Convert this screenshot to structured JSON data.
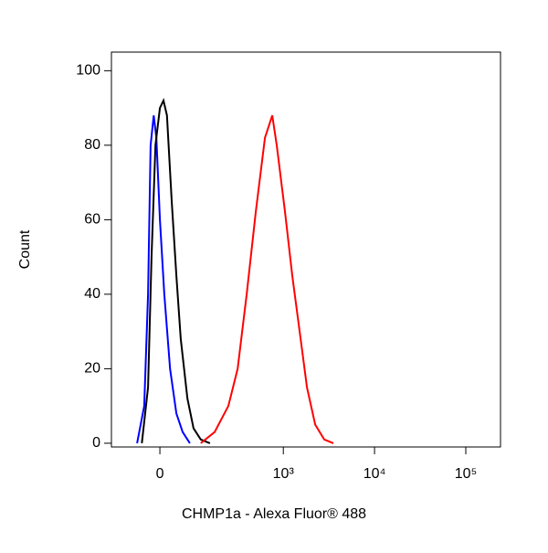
{
  "chart_data": {
    "type": "line",
    "xlabel": "CHMP1a - Alexa Fluor® 488",
    "ylabel": "Count",
    "xscale": "biexponential",
    "xlim": [
      -138,
      240000
    ],
    "ylim": [
      -1,
      105
    ],
    "xticks": [
      0,
      {
        "value": 1000,
        "label": "10³"
      },
      {
        "value": 10000,
        "label": "10⁴"
      },
      {
        "value": 100000,
        "label": "10⁵"
      }
    ],
    "yticks": [
      0,
      20,
      40,
      60,
      80,
      100
    ],
    "series": [
      {
        "color": "#0000ff",
        "x": [
          -54,
          -36,
          -27,
          -21,
          -14,
          -8,
          0,
          10,
          23,
          38,
          54,
          74
        ],
        "values": [
          0,
          10,
          40,
          80,
          88,
          82,
          60,
          40,
          20,
          8,
          3,
          0
        ]
      },
      {
        "color": "#000000",
        "x": [
          -42,
          -27,
          -19,
          -10,
          0,
          8,
          16,
          27,
          38,
          49,
          67,
          85,
          109,
          145
        ],
        "values": [
          0,
          15,
          50,
          80,
          90,
          92,
          88,
          65,
          45,
          28,
          12,
          4,
          1,
          0
        ]
      },
      {
        "color": "#ff0000",
        "x": [
          109,
          166,
          242,
          310,
          393,
          496,
          627,
          755,
          847,
          1044,
          1255,
          1510,
          1817,
          2236,
          2810,
          3540
        ],
        "values": [
          0,
          3,
          10,
          20,
          40,
          62,
          82,
          88,
          80,
          62,
          45,
          30,
          15,
          5,
          1,
          0
        ]
      }
    ]
  }
}
